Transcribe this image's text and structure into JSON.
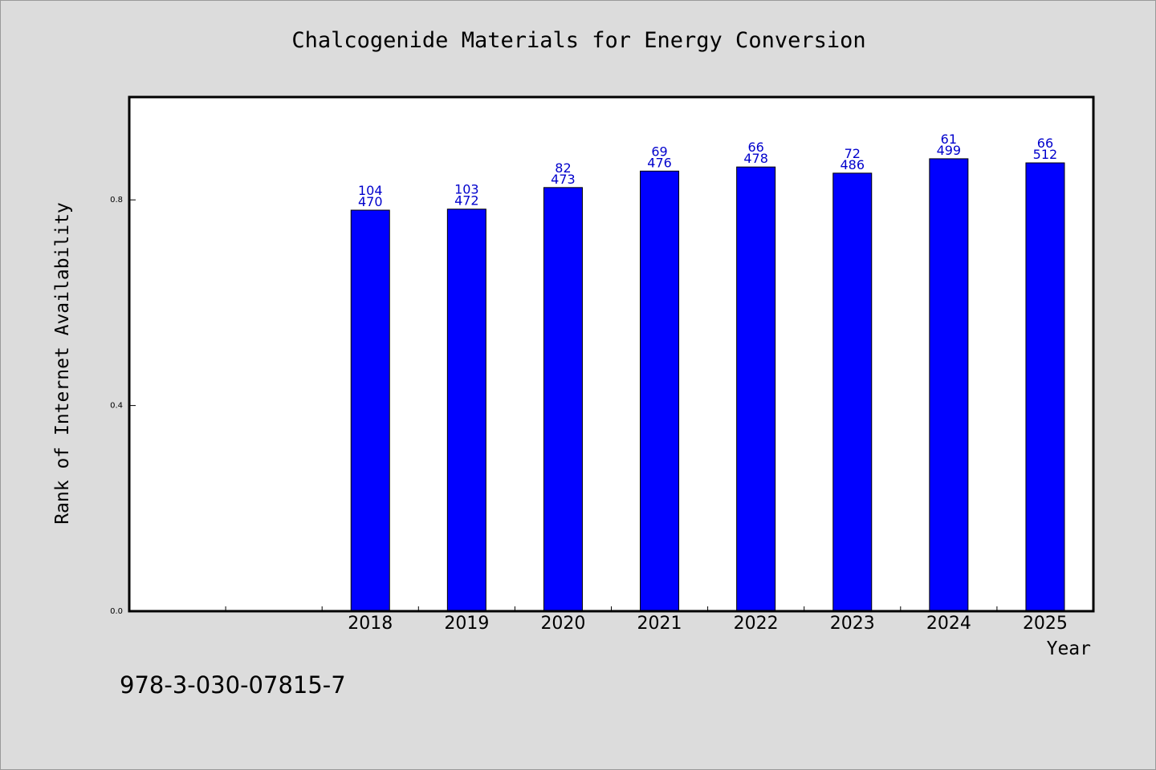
{
  "chart_data": {
    "type": "bar",
    "title": "Chalcogenide Materials for Energy Conversion",
    "xlabel": "Year",
    "ylabel": "Rank of Internet Availability",
    "categories": [
      "",
      "",
      "2018",
      "2019",
      "2020",
      "2021",
      "2022",
      "2023",
      "2024",
      "2025"
    ],
    "values": [
      null,
      null,
      0.78,
      0.782,
      0.824,
      0.856,
      0.864,
      0.852,
      0.88,
      0.872
    ],
    "label_top": [
      "",
      "",
      "104",
      "103",
      "82",
      "69",
      "66",
      "72",
      "61",
      "66"
    ],
    "label_bottom": [
      "",
      "",
      "470",
      "472",
      "473",
      "476",
      "478",
      "486",
      "499",
      "512"
    ],
    "yticks": [
      0.0,
      0.4,
      0.8
    ],
    "ytick_labels": [
      "0.0",
      "0.4",
      "0.8"
    ],
    "ylim": [
      0,
      1.0
    ],
    "grid": false,
    "bar_color": "#0000ff",
    "label_color": "#0000cc"
  },
  "footer_text": "978-3-030-07815-7",
  "colors": {
    "background": "#dcdcdc",
    "plot_background": "#ffffff"
  }
}
